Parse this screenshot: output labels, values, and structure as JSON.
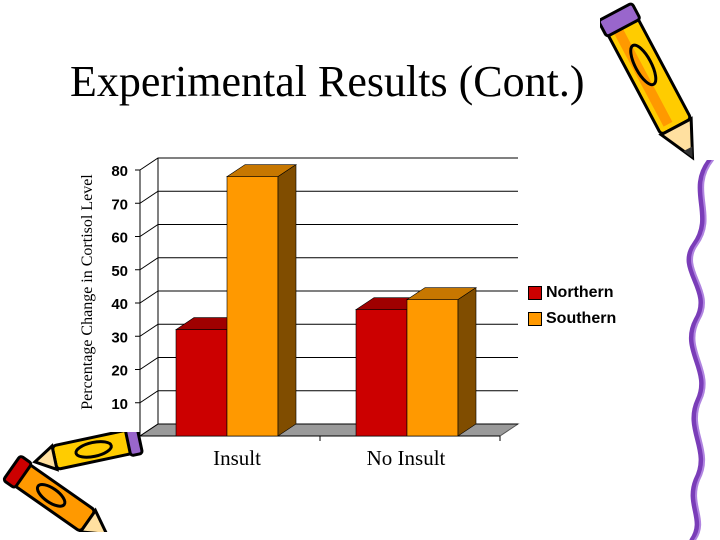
{
  "slide": {
    "title": "Experimental Results (Cont.)"
  },
  "chart_data": {
    "type": "bar",
    "title": "",
    "xlabel": "",
    "ylabel": "Percentage Change in Cortisol Level",
    "categories": [
      "Insult",
      "No Insult"
    ],
    "series": [
      {
        "name": "Northern",
        "values": [
          32,
          38
        ],
        "color": "#cc0000"
      },
      {
        "name": "Southern",
        "values": [
          78,
          41
        ],
        "color": "#ff9900"
      }
    ],
    "ylim": [
      0,
      80
    ],
    "yticks": [
      "0",
      "10",
      "20",
      "30",
      "40",
      "50",
      "60",
      "70",
      "80"
    ],
    "grid": true,
    "legend": "right",
    "style": "3d"
  },
  "decorations": {
    "top_right": "crayon-pencil-clipart",
    "bottom_left": "crayon-pencil-clipart",
    "right_edge": "purple-squiggle-line"
  }
}
